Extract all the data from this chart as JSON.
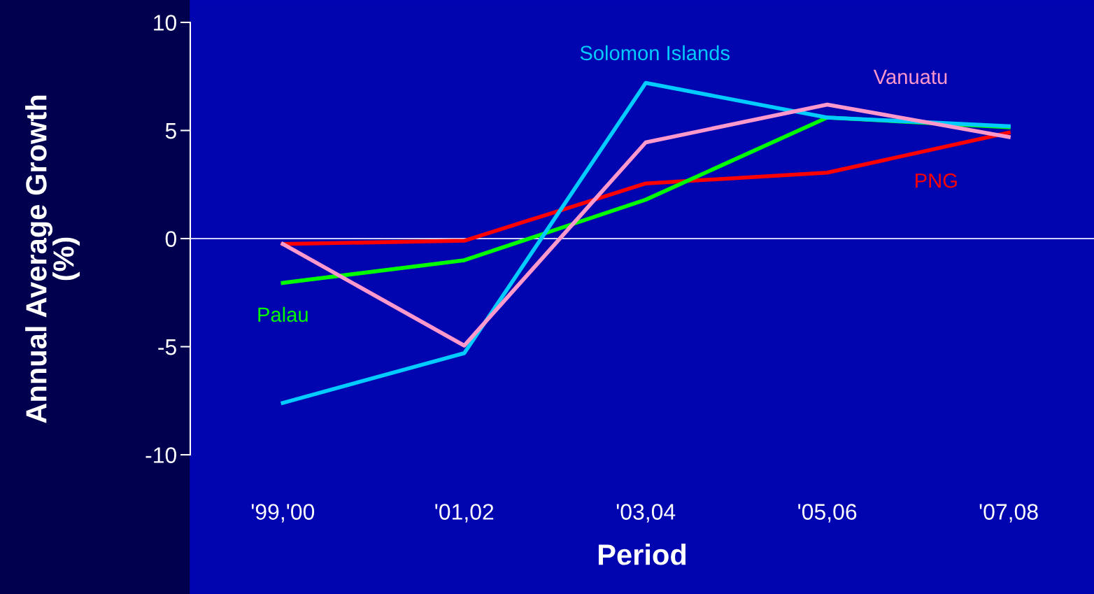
{
  "chart_data": {
    "type": "line",
    "xlabel": "Period",
    "ylabel": "Annual Average Growth\n(%)",
    "categories": [
      "'99,'00",
      "'01,02",
      "'03,04",
      "'05,06",
      "'07,08"
    ],
    "ref_lines": [
      {
        "axis": "y",
        "value": 0,
        "color": "#d0d0ff"
      }
    ],
    "ylim": [
      -10,
      10
    ],
    "yticks": [
      -10,
      -5,
      0,
      5,
      10
    ],
    "grid": false,
    "legend": false,
    "marker": "none",
    "line_style": "solid",
    "series": [
      {
        "name": "PNG",
        "color": "#ff0000",
        "values": [
          -0.25,
          -0.1,
          2.55,
          3.05,
          4.9
        ]
      },
      {
        "name": "Palau",
        "color": "#00ff00",
        "values": [
          -2.05,
          -1.0,
          1.8,
          5.6,
          5.15
        ]
      },
      {
        "name": "Solomon Islands",
        "color": "#00ccff",
        "values": [
          -7.6,
          -5.3,
          7.2,
          5.6,
          5.2
        ]
      },
      {
        "name": "Vanuatu",
        "color": "#ff99cc",
        "values": [
          -0.25,
          -4.95,
          4.45,
          6.2,
          4.7
        ]
      }
    ]
  }
}
